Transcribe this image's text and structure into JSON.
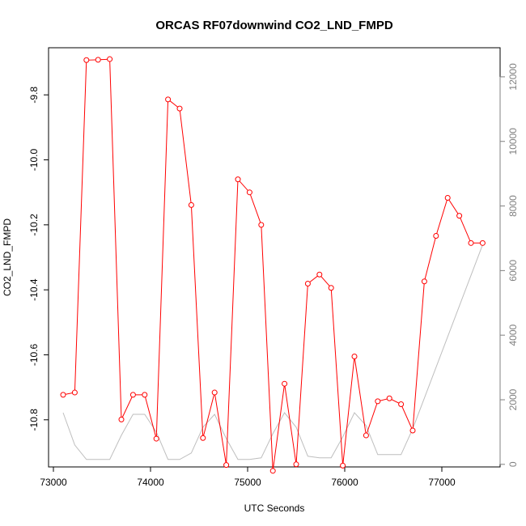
{
  "chart_data": {
    "type": "line",
    "title": "ORCAS RF07downwind CO2_LND_FMPD",
    "xlabel": "UTC Seconds",
    "ylabel": "CO2_LND_FMPD",
    "xlim": [
      72950,
      77600
    ],
    "ylim": [
      -10.945,
      -9.655
    ],
    "y2lim": [
      -80,
      12900
    ],
    "x_ticks": [
      73000,
      74000,
      75000,
      76000,
      77000
    ],
    "y_ticks": [
      -10.8,
      -10.6,
      -10.4,
      -10.2,
      -10.0,
      -9.8
    ],
    "y_tick_labels": [
      "-10.8",
      "-10.6",
      "-10.4",
      "-10.2",
      "-10.0",
      "-9.8"
    ],
    "y2_ticks": [
      0,
      2000,
      4000,
      6000,
      8000,
      10000,
      12000
    ],
    "grid": false,
    "legend": "none",
    "colors": {
      "primary": "#ff0000",
      "secondary": "#bebebe",
      "axis": "#000000",
      "right_axis": "#808080"
    },
    "series": [
      {
        "axis": "left",
        "color": "#ff0000",
        "markers": "open-circle",
        "x": [
          73100,
          73220,
          73340,
          73460,
          73580,
          73700,
          73820,
          73940,
          74060,
          74180,
          74300,
          74420,
          74540,
          74660,
          74780,
          74900,
          75020,
          75140,
          75260,
          75380,
          75500,
          75620,
          75740,
          75860,
          75980,
          76100,
          76220,
          76340,
          76460,
          76580,
          76700,
          76820,
          76940,
          77060,
          77180,
          77300,
          77420
        ],
        "y": [
          -10.723,
          -10.716,
          -9.693,
          -9.692,
          -9.69,
          -10.799,
          -10.723,
          -10.723,
          -10.858,
          -9.814,
          -9.842,
          -10.139,
          -10.856,
          -10.716,
          -10.939,
          -10.06,
          -10.1,
          -10.2,
          -10.957,
          -10.689,
          -10.937,
          -10.381,
          -10.353,
          -10.394,
          -10.941,
          -10.605,
          -10.848,
          -10.743,
          -10.734,
          -10.752,
          -10.833,
          -10.374,
          -10.234,
          -10.117,
          -10.172,
          -10.256,
          -10.256
        ]
      },
      {
        "axis": "right",
        "color": "#bebebe",
        "markers": "none",
        "x": [
          73100,
          73220,
          73340,
          73460,
          73580,
          73700,
          73820,
          73940,
          74060,
          74180,
          74300,
          74420,
          74540,
          74660,
          74780,
          74900,
          75020,
          75140,
          75260,
          75380,
          75500,
          75620,
          75740,
          75860,
          75980,
          76100,
          76220,
          76340,
          76460,
          76580,
          76700,
          77420
        ],
        "y": [
          1600,
          600,
          150,
          150,
          150,
          900,
          1550,
          1550,
          1000,
          150,
          150,
          350,
          1150,
          1550,
          800,
          150,
          150,
          200,
          950,
          1600,
          1150,
          250,
          200,
          200,
          850,
          1600,
          1200,
          300,
          300,
          300,
          1100,
          6800
        ]
      }
    ]
  }
}
